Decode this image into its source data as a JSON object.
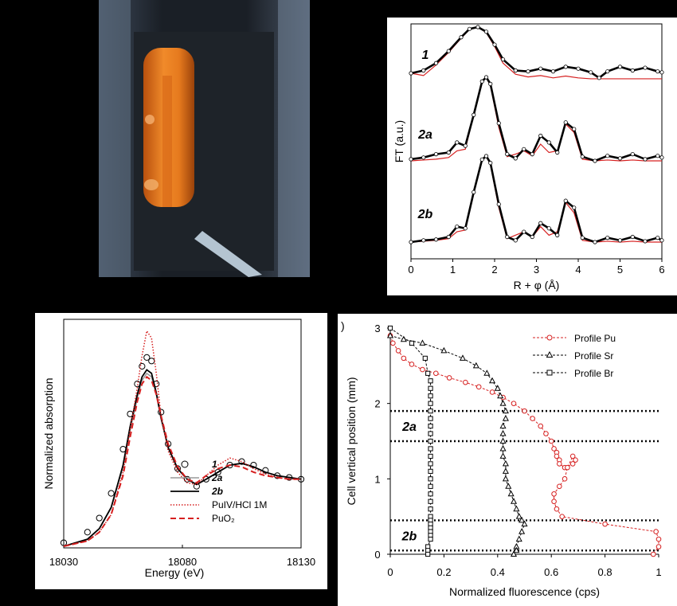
{
  "colors": {
    "red": "#d62020",
    "black": "#000000",
    "gray": "#9a9a9a"
  },
  "photo": {
    "description_icon": "sample-cell-photo"
  },
  "chart_data": [
    {
      "type": "line",
      "panel": "ft",
      "xlabel": "R + φ (Å)",
      "ylabel": "FT (a.u.)",
      "xlim": [
        0,
        6
      ],
      "x_ticks": [
        "0",
        "1",
        "2",
        "3",
        "4",
        "5",
        "6"
      ],
      "curve_labels": [
        "1",
        "2a",
        "2b"
      ],
      "series": [
        {
          "label": "1",
          "offset": 0,
          "exp_x": [
            0,
            0.3,
            0.6,
            0.9,
            1.2,
            1.4,
            1.6,
            1.8,
            2.0,
            2.2,
            2.5,
            2.8,
            3.1,
            3.4,
            3.7,
            4.0,
            4.3,
            4.5,
            4.7,
            5.0,
            5.3,
            5.6,
            5.9,
            6.0
          ],
          "exp_y": [
            0.0,
            0.06,
            0.22,
            0.48,
            0.78,
            0.96,
            1.0,
            0.9,
            0.62,
            0.3,
            0.06,
            0.04,
            0.1,
            0.04,
            0.14,
            0.1,
            0.02,
            -0.1,
            0.04,
            0.14,
            0.06,
            0.12,
            0.04,
            0.02
          ],
          "fit_y": [
            0.0,
            -0.05,
            0.18,
            0.45,
            0.76,
            0.95,
            1.0,
            0.88,
            0.58,
            0.22,
            -0.02,
            -0.08,
            -0.05,
            -0.1,
            -0.06,
            -0.1,
            -0.12,
            -0.12,
            -0.12,
            -0.12,
            -0.12,
            -0.12,
            -0.12,
            -0.12
          ]
        },
        {
          "label": "2a",
          "offset": 0,
          "exp_x": [
            0,
            0.3,
            0.6,
            0.9,
            1.1,
            1.3,
            1.5,
            1.7,
            1.8,
            1.9,
            2.1,
            2.3,
            2.5,
            2.7,
            2.9,
            3.1,
            3.3,
            3.5,
            3.7,
            3.9,
            4.1,
            4.4,
            4.7,
            5.0,
            5.3,
            5.6,
            5.9,
            6.0
          ],
          "exp_y": [
            0.02,
            0.04,
            0.08,
            0.1,
            0.22,
            0.18,
            0.55,
            0.95,
            1.0,
            0.92,
            0.45,
            0.08,
            0.03,
            0.14,
            0.08,
            0.3,
            0.22,
            0.1,
            0.46,
            0.38,
            0.05,
            0.0,
            0.06,
            0.03,
            0.08,
            0.02,
            0.06,
            0.04
          ],
          "fit_y": [
            0.0,
            0.01,
            0.02,
            0.04,
            0.12,
            0.14,
            0.55,
            0.96,
            1.0,
            0.9,
            0.4,
            0.05,
            0.08,
            0.12,
            0.06,
            0.2,
            0.1,
            0.12,
            0.44,
            0.34,
            0.02,
            0.0,
            0.01,
            0.0,
            0.01,
            0.0,
            0.0,
            0.0
          ]
        },
        {
          "label": "2b",
          "offset": 0,
          "exp_x": [
            0,
            0.3,
            0.6,
            0.9,
            1.1,
            1.3,
            1.5,
            1.7,
            1.8,
            1.9,
            2.1,
            2.3,
            2.5,
            2.7,
            2.9,
            3.1,
            3.3,
            3.5,
            3.7,
            3.9,
            4.1,
            4.4,
            4.7,
            5.0,
            5.3,
            5.6,
            5.9,
            6.0
          ],
          "exp_y": [
            0.0,
            0.02,
            0.03,
            0.06,
            0.18,
            0.16,
            0.58,
            0.96,
            1.0,
            0.92,
            0.44,
            0.06,
            0.02,
            0.12,
            0.06,
            0.22,
            0.16,
            0.08,
            0.48,
            0.4,
            0.05,
            0.0,
            0.05,
            0.02,
            0.06,
            0.01,
            0.05,
            0.02
          ],
          "fit_y": [
            0.0,
            0.01,
            0.02,
            0.04,
            0.12,
            0.14,
            0.56,
            0.96,
            1.0,
            0.9,
            0.4,
            0.04,
            0.08,
            0.12,
            0.06,
            0.18,
            0.08,
            0.12,
            0.46,
            0.34,
            0.02,
            0.0,
            0.01,
            0.0,
            0.01,
            0.0,
            0.0,
            0.0
          ]
        }
      ]
    },
    {
      "type": "line",
      "panel": "xanes",
      "xlabel": "Energy (eV)",
      "ylabel": "Normalized absorption",
      "xlim": [
        18030,
        18130
      ],
      "x_ticks": [
        "18030",
        "18080",
        "18130"
      ],
      "legend": [
        "1",
        "2a",
        "2b",
        "PuIV/HCl 1M",
        "PuO₂"
      ],
      "energy": [
        18030,
        18040,
        18045,
        18050,
        18055,
        18058,
        18061,
        18063,
        18065,
        18067,
        18069,
        18071,
        18074,
        18078,
        18082,
        18086,
        18090,
        18095,
        18100,
        18105,
        18110,
        18115,
        18120,
        18125,
        18130
      ],
      "series": [
        {
          "name": "1",
          "style": "circles",
          "values": [
            0.02,
            0.08,
            0.16,
            0.3,
            0.55,
            0.75,
            0.92,
            1.02,
            1.07,
            1.05,
            0.92,
            0.76,
            0.58,
            0.44,
            0.38,
            0.34,
            0.38,
            0.42,
            0.46,
            0.48,
            0.46,
            0.43,
            0.4,
            0.39,
            0.38
          ]
        },
        {
          "name": "2a",
          "style": "gray",
          "values": [
            0.0,
            0.04,
            0.1,
            0.22,
            0.45,
            0.66,
            0.84,
            0.94,
            0.98,
            0.96,
            0.86,
            0.72,
            0.56,
            0.44,
            0.38,
            0.35,
            0.38,
            0.42,
            0.46,
            0.47,
            0.45,
            0.42,
            0.4,
            0.39,
            0.38
          ]
        },
        {
          "name": "2b",
          "style": "black",
          "values": [
            0.0,
            0.04,
            0.1,
            0.22,
            0.46,
            0.68,
            0.86,
            0.96,
            1.0,
            0.98,
            0.87,
            0.73,
            0.56,
            0.44,
            0.38,
            0.35,
            0.38,
            0.42,
            0.46,
            0.47,
            0.45,
            0.42,
            0.4,
            0.39,
            0.38
          ]
        },
        {
          "name": "PuIV/HCl 1M",
          "style": "red-dotted",
          "values": [
            0.0,
            0.03,
            0.08,
            0.18,
            0.42,
            0.66,
            0.9,
            1.08,
            1.22,
            1.18,
            0.98,
            0.74,
            0.54,
            0.42,
            0.36,
            0.35,
            0.4,
            0.46,
            0.5,
            0.48,
            0.44,
            0.41,
            0.39,
            0.38,
            0.38
          ]
        },
        {
          "name": "PuO₂",
          "style": "red-dashed",
          "values": [
            0.0,
            0.03,
            0.08,
            0.18,
            0.4,
            0.62,
            0.82,
            0.92,
            0.96,
            0.94,
            0.86,
            0.74,
            0.58,
            0.45,
            0.38,
            0.36,
            0.4,
            0.44,
            0.46,
            0.45,
            0.42,
            0.4,
            0.39,
            0.38,
            0.38
          ]
        }
      ]
    },
    {
      "type": "line",
      "panel": "profile",
      "panel_tag": ")",
      "xlabel": "Normalized fluorescence (cps)",
      "ylabel": "Cell vertical position (mm)",
      "xlim": [
        0,
        1
      ],
      "ylim": [
        0,
        3
      ],
      "x_ticks": [
        "0",
        "0.2",
        "0.4",
        "0.6",
        "0.8",
        "1"
      ],
      "y_ticks": [
        "0",
        "1",
        "2",
        "3"
      ],
      "hlines": [
        1.9,
        1.5,
        0.45,
        0.05
      ],
      "region_labels": [
        {
          "text": "2a",
          "y": 1.7
        },
        {
          "text": "2b",
          "y": 0.25
        }
      ],
      "legend": [
        "Profile Pu",
        "Profile Sr",
        "Profile Br"
      ],
      "series": [
        {
          "name": "Profile Pu",
          "color": "red",
          "marker": "circle",
          "x": [
            0.0,
            0.01,
            0.03,
            0.05,
            0.08,
            0.12,
            0.17,
            0.22,
            0.28,
            0.33,
            0.38,
            0.42,
            0.46,
            0.5,
            0.53,
            0.56,
            0.58,
            0.6,
            0.61,
            0.62,
            0.62,
            0.63,
            0.63,
            0.65,
            0.68,
            0.69,
            0.68,
            0.66,
            0.65,
            0.63,
            0.61,
            0.61,
            0.62,
            0.64,
            0.8,
            0.99,
            1.0,
            1.0,
            0.98
          ],
          "y": [
            2.9,
            2.8,
            2.7,
            2.6,
            2.52,
            2.45,
            2.4,
            2.34,
            2.28,
            2.22,
            2.15,
            2.08,
            2.0,
            1.9,
            1.8,
            1.7,
            1.6,
            1.5,
            1.4,
            1.35,
            1.3,
            1.25,
            1.2,
            1.15,
            1.2,
            1.25,
            1.3,
            1.15,
            1.0,
            0.9,
            0.8,
            0.7,
            0.6,
            0.5,
            0.4,
            0.3,
            0.2,
            0.1,
            0.0
          ]
        },
        {
          "name": "Profile Sr",
          "color": "black",
          "marker": "triangle",
          "x": [
            0.0,
            0.05,
            0.12,
            0.2,
            0.27,
            0.32,
            0.36,
            0.38,
            0.4,
            0.41,
            0.42,
            0.43,
            0.43,
            0.42,
            0.42,
            0.42,
            0.42,
            0.42,
            0.43,
            0.43,
            0.43,
            0.44,
            0.45,
            0.46,
            0.47,
            0.48,
            0.49,
            0.5,
            0.49,
            0.48,
            0.47,
            0.47,
            0.46
          ],
          "y": [
            2.9,
            2.85,
            2.8,
            2.7,
            2.6,
            2.5,
            2.4,
            2.3,
            2.2,
            2.1,
            2.0,
            1.9,
            1.8,
            1.7,
            1.6,
            1.5,
            1.4,
            1.3,
            1.2,
            1.1,
            1.0,
            0.9,
            0.8,
            0.7,
            0.6,
            0.5,
            0.45,
            0.4,
            0.3,
            0.2,
            0.1,
            0.05,
            0.0
          ]
        },
        {
          "name": "Profile Br",
          "color": "black",
          "marker": "square",
          "x": [
            0.0,
            0.08,
            0.13,
            0.14,
            0.15,
            0.15,
            0.15,
            0.15,
            0.15,
            0.15,
            0.15,
            0.15,
            0.15,
            0.15,
            0.15,
            0.15,
            0.15,
            0.15,
            0.15,
            0.15,
            0.15,
            0.15,
            0.15,
            0.15,
            0.15,
            0.15,
            0.15,
            0.15,
            0.15,
            0.14,
            0.14,
            0.14
          ],
          "y": [
            3.0,
            2.8,
            2.6,
            2.4,
            2.3,
            2.2,
            2.1,
            2.0,
            1.9,
            1.8,
            1.7,
            1.6,
            1.5,
            1.4,
            1.3,
            1.2,
            1.1,
            1.0,
            0.9,
            0.8,
            0.7,
            0.6,
            0.5,
            0.45,
            0.4,
            0.35,
            0.3,
            0.25,
            0.2,
            0.1,
            0.05,
            0.0
          ]
        }
      ]
    }
  ]
}
